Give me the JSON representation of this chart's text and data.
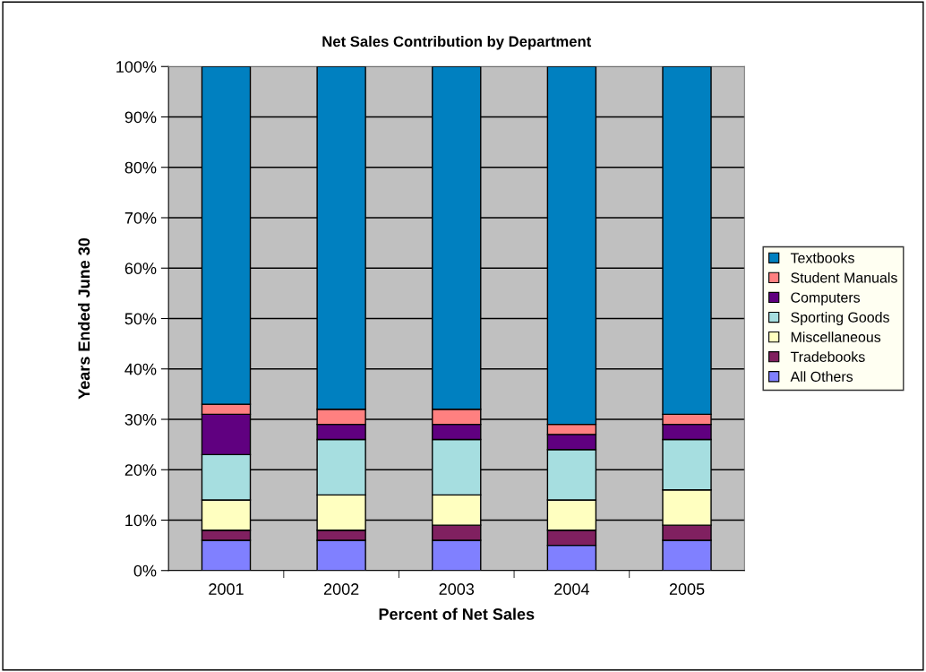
{
  "chart_data": {
    "type": "bar",
    "stacked": true,
    "title": "Net Sales Contribution by Department",
    "xlabel": "Percent of Net Sales",
    "ylabel": "Years Ended June 30",
    "categories": [
      "2001",
      "2002",
      "2003",
      "2004",
      "2005"
    ],
    "series": [
      {
        "name": "All Others",
        "color": "#8080ff",
        "values": [
          6,
          6,
          6,
          5,
          6
        ]
      },
      {
        "name": "Tradebooks",
        "color": "#802060",
        "values": [
          2,
          2,
          3,
          3,
          3
        ]
      },
      {
        "name": "Miscellaneous",
        "color": "#ffffc0",
        "values": [
          6,
          7,
          6,
          6,
          7
        ]
      },
      {
        "name": "Sporting Goods",
        "color": "#a6dee0",
        "values": [
          9,
          11,
          11,
          10,
          10
        ]
      },
      {
        "name": "Computers",
        "color": "#600080",
        "values": [
          8,
          3,
          3,
          3,
          3
        ]
      },
      {
        "name": "Student Manuals",
        "color": "#ff8080",
        "values": [
          2,
          3,
          3,
          2,
          2
        ]
      },
      {
        "name": "Textbooks",
        "color": "#0080c0",
        "values": [
          67,
          68,
          68,
          71,
          69
        ]
      }
    ],
    "ylim": [
      0,
      100
    ],
    "yticks": [
      {
        "value": 0,
        "label": "0%"
      },
      {
        "value": 10,
        "label": "10%"
      },
      {
        "value": 20,
        "label": "20%"
      },
      {
        "value": 30,
        "label": "30%"
      },
      {
        "value": 40,
        "label": "40%"
      },
      {
        "value": 50,
        "label": "50%"
      },
      {
        "value": 60,
        "label": "60%"
      },
      {
        "value": 70,
        "label": "70%"
      },
      {
        "value": 80,
        "label": "80%"
      },
      {
        "value": 90,
        "label": "90%"
      },
      {
        "value": 100,
        "label": "100%"
      }
    ],
    "grid": "y",
    "legend": "right"
  }
}
